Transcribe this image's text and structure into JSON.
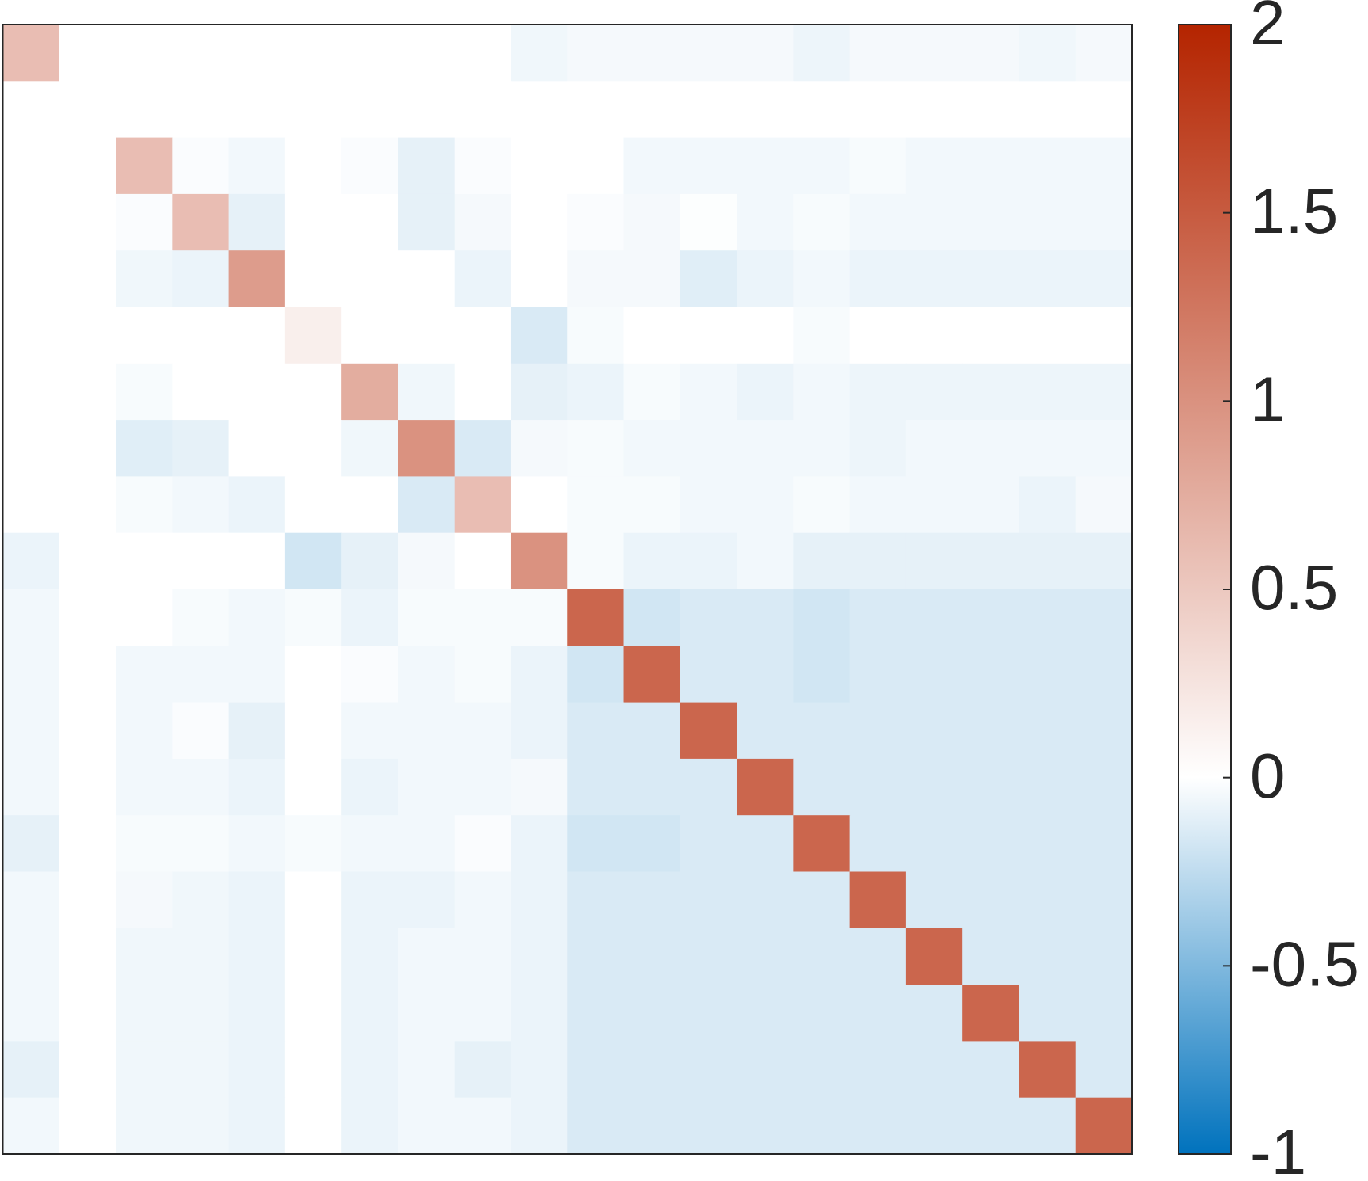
{
  "chart_data": {
    "type": "heatmap",
    "z": [
      [
        0.6,
        0,
        0,
        0,
        0,
        0,
        0,
        0,
        0,
        -0.06,
        -0.04,
        -0.04,
        -0.04,
        -0.04,
        -0.07,
        -0.04,
        -0.04,
        -0.04,
        -0.06,
        -0.04
      ],
      [
        0,
        0,
        0,
        0,
        0,
        0,
        0,
        0,
        0,
        0,
        0,
        0,
        0,
        0,
        0,
        0,
        0,
        0,
        0,
        0
      ],
      [
        0,
        0,
        0.6,
        -0.02,
        -0.05,
        0,
        -0.02,
        -0.1,
        -0.02,
        0,
        0,
        -0.05,
        -0.05,
        -0.05,
        -0.05,
        -0.03,
        -0.05,
        -0.05,
        -0.05,
        -0.05
      ],
      [
        0,
        0,
        -0.02,
        0.6,
        -0.1,
        0,
        0,
        -0.1,
        -0.04,
        0,
        -0.02,
        -0.04,
        -0.01,
        -0.05,
        -0.03,
        -0.05,
        -0.05,
        -0.05,
        -0.05,
        -0.05
      ],
      [
        0,
        0,
        -0.06,
        -0.08,
        0.9,
        0,
        0,
        0,
        -0.08,
        0,
        -0.04,
        -0.04,
        -0.12,
        -0.08,
        -0.05,
        -0.08,
        -0.08,
        -0.08,
        -0.08,
        -0.08
      ],
      [
        0,
        0,
        0,
        0,
        0,
        0.15,
        0,
        0,
        0,
        -0.15,
        -0.03,
        0,
        0,
        0,
        -0.03,
        0,
        0,
        0,
        0,
        0
      ],
      [
        0,
        0,
        -0.03,
        0,
        0,
        0,
        0.75,
        -0.06,
        0,
        -0.1,
        -0.08,
        -0.03,
        -0.05,
        -0.08,
        -0.05,
        -0.07,
        -0.07,
        -0.07,
        -0.07,
        -0.07
      ],
      [
        0,
        0,
        -0.12,
        -0.1,
        0,
        0,
        -0.06,
        1.0,
        -0.15,
        -0.04,
        -0.03,
        -0.05,
        -0.05,
        -0.05,
        -0.05,
        -0.07,
        -0.05,
        -0.05,
        -0.05,
        -0.05
      ],
      [
        0,
        0,
        -0.03,
        -0.05,
        -0.08,
        0,
        0,
        -0.15,
        0.6,
        0,
        -0.03,
        -0.03,
        -0.05,
        -0.05,
        -0.03,
        -0.05,
        -0.05,
        -0.05,
        -0.08,
        -0.04
      ],
      [
        -0.08,
        0,
        0,
        0,
        0,
        -0.18,
        -0.1,
        -0.04,
        0,
        1.0,
        -0.03,
        -0.08,
        -0.08,
        -0.05,
        -0.1,
        -0.1,
        -0.1,
        -0.1,
        -0.1,
        -0.1
      ],
      [
        -0.05,
        0,
        0,
        -0.03,
        -0.05,
        -0.03,
        -0.08,
        -0.03,
        -0.03,
        -0.03,
        1.4,
        -0.18,
        -0.15,
        -0.15,
        -0.18,
        -0.15,
        -0.15,
        -0.15,
        -0.15,
        -0.15
      ],
      [
        -0.05,
        0,
        -0.05,
        -0.05,
        -0.05,
        0,
        -0.02,
        -0.05,
        -0.03,
        -0.08,
        -0.18,
        1.4,
        -0.15,
        -0.15,
        -0.18,
        -0.15,
        -0.15,
        -0.15,
        -0.15,
        -0.15
      ],
      [
        -0.05,
        0,
        -0.05,
        -0.02,
        -0.1,
        0,
        -0.05,
        -0.05,
        -0.05,
        -0.08,
        -0.15,
        -0.15,
        1.4,
        -0.15,
        -0.15,
        -0.15,
        -0.15,
        -0.15,
        -0.15,
        -0.15
      ],
      [
        -0.05,
        0,
        -0.05,
        -0.05,
        -0.08,
        0,
        -0.08,
        -0.05,
        -0.05,
        -0.04,
        -0.15,
        -0.15,
        -0.15,
        1.4,
        -0.15,
        -0.15,
        -0.15,
        -0.15,
        -0.15,
        -0.15
      ],
      [
        -0.1,
        0,
        -0.03,
        -0.03,
        -0.05,
        -0.03,
        -0.05,
        -0.05,
        -0.02,
        -0.08,
        -0.18,
        -0.18,
        -0.15,
        -0.15,
        1.4,
        -0.15,
        -0.15,
        -0.15,
        -0.15,
        -0.15
      ],
      [
        -0.05,
        0,
        -0.04,
        -0.06,
        -0.08,
        0,
        -0.08,
        -0.08,
        -0.05,
        -0.08,
        -0.15,
        -0.15,
        -0.15,
        -0.15,
        -0.15,
        1.4,
        -0.15,
        -0.15,
        -0.15,
        -0.15
      ],
      [
        -0.05,
        0,
        -0.06,
        -0.06,
        -0.08,
        0,
        -0.08,
        -0.05,
        -0.05,
        -0.08,
        -0.15,
        -0.15,
        -0.15,
        -0.15,
        -0.15,
        -0.15,
        1.4,
        -0.15,
        -0.15,
        -0.15
      ],
      [
        -0.05,
        0,
        -0.06,
        -0.06,
        -0.08,
        0,
        -0.08,
        -0.05,
        -0.05,
        -0.08,
        -0.15,
        -0.15,
        -0.15,
        -0.15,
        -0.15,
        -0.15,
        -0.15,
        1.4,
        -0.15,
        -0.15
      ],
      [
        -0.1,
        0,
        -0.06,
        -0.06,
        -0.08,
        0,
        -0.08,
        -0.05,
        -0.1,
        -0.08,
        -0.15,
        -0.15,
        -0.15,
        -0.15,
        -0.15,
        -0.15,
        -0.15,
        -0.15,
        1.4,
        -0.15
      ],
      [
        -0.05,
        0,
        -0.06,
        -0.06,
        -0.08,
        0,
        -0.08,
        -0.05,
        -0.05,
        -0.08,
        -0.15,
        -0.15,
        -0.15,
        -0.15,
        -0.15,
        -0.15,
        -0.15,
        -0.15,
        -0.15,
        1.4
      ]
    ],
    "zlim": [
      -1,
      2
    ],
    "zticks": [
      -1,
      -0.5,
      0,
      0.5,
      1,
      1.5,
      2
    ],
    "colormap": [
      {
        "value": -1,
        "color": "#0072bd"
      },
      {
        "value": 0,
        "color": "#ffffff"
      },
      {
        "value": 2,
        "color": "#b42400"
      }
    ]
  }
}
